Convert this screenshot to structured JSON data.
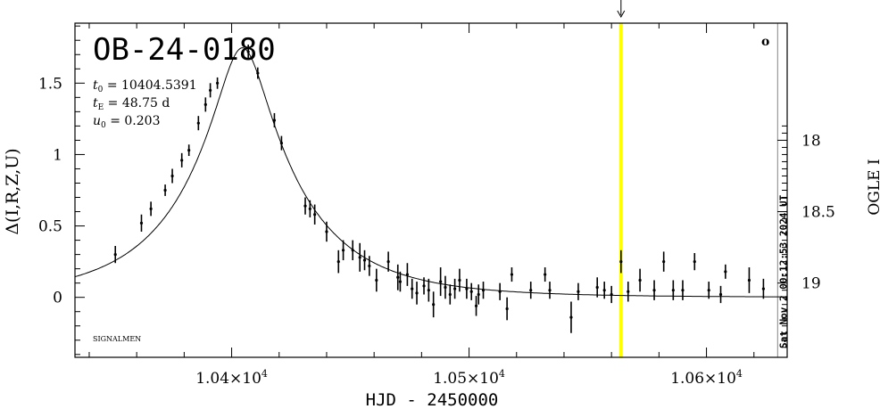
{
  "chart_data": {
    "type": "scatter",
    "title": "OB-24-0180",
    "xlabel": "HJD - 2450000",
    "ylabel_left": "Δ(I,R,Z,U)",
    "ylabel_right": "OGLE I",
    "xlim": [
      10334,
      10634
    ],
    "ylim": [
      -0.42,
      1.92
    ],
    "right_axis_mag_ticks": [
      "18",
      "18.5",
      "19"
    ],
    "x_tick_labels": [
      {
        "x": 10400,
        "mantissa": "1.04",
        "times": "×10",
        "exp": "4"
      },
      {
        "x": 10500,
        "mantissa": "1.05",
        "times": "×10",
        "exp": "4"
      },
      {
        "x": 10600,
        "mantissa": "1.06",
        "times": "×10",
        "exp": "4"
      }
    ],
    "y_tick_labels": [
      {
        "y": 0,
        "label": "0"
      },
      {
        "y": 0.5,
        "label": "0.5"
      },
      {
        "y": 1,
        "label": "1"
      },
      {
        "y": 1.5,
        "label": "1.5"
      }
    ],
    "params": [
      {
        "sym": "t",
        "sub": "0",
        "value": " = 10404.5391"
      },
      {
        "sym": "t",
        "sub": "E",
        "value": " = 48.75  d"
      },
      {
        "sym": "u",
        "sub": "0",
        "value": " = 0.203"
      }
    ],
    "watermark": "SIGNALMEN",
    "corner_mark": "o",
    "now_label": "Sat Nov  2 00:12:53 2024 UT",
    "now_x": 10630,
    "highlight_x": 10564,
    "model": {
      "t0": 10404.5391,
      "tE": 48.75,
      "u0": 0.203
    },
    "series": [
      {
        "points": [
          {
            "x": 10351,
            "y": 0.3,
            "e": 0.06
          },
          {
            "x": 10362,
            "y": 0.52,
            "e": 0.06
          },
          {
            "x": 10366,
            "y": 0.62,
            "e": 0.05
          },
          {
            "x": 10372,
            "y": 0.75,
            "e": 0.04
          },
          {
            "x": 10375,
            "y": 0.85,
            "e": 0.05
          },
          {
            "x": 10379,
            "y": 0.96,
            "e": 0.05
          },
          {
            "x": 10382,
            "y": 1.03,
            "e": 0.04
          },
          {
            "x": 10386,
            "y": 1.22,
            "e": 0.05
          },
          {
            "x": 10389,
            "y": 1.35,
            "e": 0.05
          },
          {
            "x": 10391,
            "y": 1.45,
            "e": 0.05
          },
          {
            "x": 10394,
            "y": 1.5,
            "e": 0.04
          },
          {
            "x": 10407,
            "y": 1.72,
            "e": 0.05
          },
          {
            "x": 10411,
            "y": 1.57,
            "e": 0.04
          },
          {
            "x": 10418,
            "y": 1.24,
            "e": 0.05
          },
          {
            "x": 10421,
            "y": 1.08,
            "e": 0.05
          },
          {
            "x": 10431,
            "y": 0.64,
            "e": 0.06
          },
          {
            "x": 10433,
            "y": 0.62,
            "e": 0.06
          },
          {
            "x": 10435,
            "y": 0.58,
            "e": 0.07
          },
          {
            "x": 10440,
            "y": 0.46,
            "e": 0.07
          },
          {
            "x": 10445,
            "y": 0.25,
            "e": 0.08
          },
          {
            "x": 10447,
            "y": 0.33,
            "e": 0.07
          },
          {
            "x": 10451,
            "y": 0.33,
            "e": 0.07
          },
          {
            "x": 10454,
            "y": 0.28,
            "e": 0.1
          },
          {
            "x": 10456,
            "y": 0.26,
            "e": 0.07
          },
          {
            "x": 10458,
            "y": 0.22,
            "e": 0.07
          },
          {
            "x": 10461,
            "y": 0.12,
            "e": 0.08
          },
          {
            "x": 10466,
            "y": 0.25,
            "e": 0.07
          },
          {
            "x": 10470,
            "y": 0.14,
            "e": 0.09
          },
          {
            "x": 10471,
            "y": 0.11,
            "e": 0.07
          },
          {
            "x": 10474,
            "y": 0.16,
            "e": 0.08
          },
          {
            "x": 10476,
            "y": 0.06,
            "e": 0.07
          },
          {
            "x": 10478,
            "y": 0.03,
            "e": 0.08
          },
          {
            "x": 10481,
            "y": 0.08,
            "e": 0.06
          },
          {
            "x": 10483,
            "y": 0.05,
            "e": 0.08
          },
          {
            "x": 10485,
            "y": -0.05,
            "e": 0.09
          },
          {
            "x": 10488,
            "y": 0.11,
            "e": 0.1
          },
          {
            "x": 10490,
            "y": 0.07,
            "e": 0.08
          },
          {
            "x": 10492,
            "y": 0.02,
            "e": 0.07
          },
          {
            "x": 10494,
            "y": 0.06,
            "e": 0.07
          },
          {
            "x": 10496,
            "y": 0.12,
            "e": 0.08
          },
          {
            "x": 10499,
            "y": 0.06,
            "e": 0.07
          },
          {
            "x": 10501,
            "y": 0.04,
            "e": 0.06
          },
          {
            "x": 10503,
            "y": -0.06,
            "e": 0.07
          },
          {
            "x": 10504,
            "y": 0.02,
            "e": 0.07
          },
          {
            "x": 10506,
            "y": 0.05,
            "e": 0.06
          },
          {
            "x": 10513,
            "y": 0.04,
            "e": 0.06
          },
          {
            "x": 10516,
            "y": -0.08,
            "e": 0.08
          },
          {
            "x": 10518,
            "y": 0.16,
            "e": 0.05
          },
          {
            "x": 10526,
            "y": 0.05,
            "e": 0.06
          },
          {
            "x": 10532,
            "y": 0.16,
            "e": 0.05
          },
          {
            "x": 10534,
            "y": 0.05,
            "e": 0.06
          },
          {
            "x": 10543,
            "y": -0.14,
            "e": 0.11
          },
          {
            "x": 10546,
            "y": 0.04,
            "e": 0.06
          },
          {
            "x": 10554,
            "y": 0.07,
            "e": 0.07
          },
          {
            "x": 10557,
            "y": 0.05,
            "e": 0.06
          },
          {
            "x": 10560,
            "y": 0.02,
            "e": 0.06
          },
          {
            "x": 10564,
            "y": 0.25,
            "e": 0.08
          },
          {
            "x": 10567,
            "y": 0.04,
            "e": 0.07
          },
          {
            "x": 10572,
            "y": 0.12,
            "e": 0.08
          },
          {
            "x": 10578,
            "y": 0.05,
            "e": 0.07
          },
          {
            "x": 10582,
            "y": 0.25,
            "e": 0.07
          },
          {
            "x": 10586,
            "y": 0.05,
            "e": 0.07
          },
          {
            "x": 10590,
            "y": 0.05,
            "e": 0.07
          },
          {
            "x": 10595,
            "y": 0.25,
            "e": 0.06
          },
          {
            "x": 10601,
            "y": 0.05,
            "e": 0.06
          },
          {
            "x": 10606,
            "y": 0.02,
            "e": 0.06
          },
          {
            "x": 10608,
            "y": 0.18,
            "e": 0.05
          },
          {
            "x": 10618,
            "y": 0.12,
            "e": 0.09
          },
          {
            "x": 10624,
            "y": 0.06,
            "e": 0.07
          }
        ]
      }
    ],
    "colors": {
      "highlight": "#ffff00",
      "now_line": "#999999",
      "now_text": "#888888",
      "ink": "#000000"
    }
  }
}
